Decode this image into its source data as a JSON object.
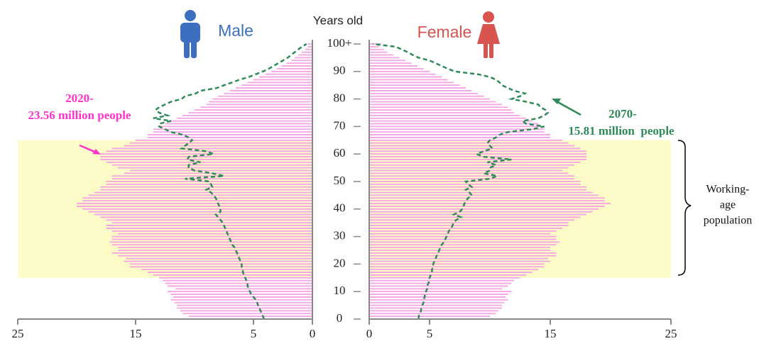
{
  "chart_data": {
    "type": "population-pyramid",
    "y_label": "Years old",
    "ages": [
      0,
      1,
      2,
      3,
      4,
      5,
      6,
      7,
      8,
      9,
      10,
      11,
      12,
      13,
      14,
      15,
      16,
      17,
      18,
      19,
      20,
      21,
      22,
      23,
      24,
      25,
      26,
      27,
      28,
      29,
      30,
      31,
      32,
      33,
      34,
      35,
      36,
      37,
      38,
      39,
      40,
      41,
      42,
      43,
      44,
      45,
      46,
      47,
      48,
      49,
      50,
      51,
      52,
      53,
      54,
      55,
      56,
      57,
      58,
      59,
      60,
      61,
      62,
      63,
      64,
      65,
      66,
      67,
      68,
      69,
      70,
      71,
      72,
      73,
      74,
      75,
      76,
      77,
      78,
      79,
      80,
      81,
      82,
      83,
      84,
      85,
      86,
      87,
      88,
      89,
      90,
      91,
      92,
      93,
      94,
      95,
      96,
      97,
      98,
      99,
      100
    ],
    "ylim": [
      0,
      100
    ],
    "yticks": [
      0,
      10,
      20,
      30,
      40,
      50,
      60,
      70,
      80,
      90,
      {
        "value": 100,
        "label": "100+"
      }
    ],
    "xlim": [
      0,
      25
    ],
    "xticks": [
      0,
      5,
      15,
      25
    ],
    "band": {
      "label": [
        "Working-",
        "age",
        "population"
      ],
      "from": 15,
      "to": 65,
      "color": "#fdfbc8"
    },
    "panels": [
      {
        "name": "Male",
        "side": "left",
        "color": "#3d6fc0",
        "series": [
          {
            "name": "2020",
            "style": "bar",
            "color": "#f5a3e3",
            "values": [
              11,
              10.5,
              11,
              11.2,
              11.5,
              11.5,
              11.7,
              12,
              11.8,
              12,
              12.3,
              11.6,
              12.3,
              12.5,
              12.7,
              13,
              13.5,
              14,
              14.5,
              15.5,
              15.5,
              16,
              15.8,
              16.5,
              17,
              16.5,
              16.5,
              17,
              17.2,
              17,
              17,
              16.5,
              17,
              17.5,
              17.5,
              17,
              17.5,
              18,
              18.5,
              19,
              19.5,
              20,
              20,
              19.5,
              19.5,
              19,
              18.5,
              18,
              18,
              17.5,
              17.5,
              17,
              17,
              16,
              15.5,
              16.5,
              17,
              17.5,
              18,
              18,
              18,
              17.5,
              17,
              16,
              15.5,
              15,
              14,
              14,
              13.5,
              13.5,
              13,
              12.5,
              12,
              11.5,
              11,
              10.5,
              10,
              9.5,
              9,
              8.8,
              8.5,
              8,
              7.5,
              7,
              6.5,
              6,
              5.5,
              5,
              4.5,
              4,
              3.5,
              3,
              2.6,
              2.2,
              1.8,
              1.5,
              1.2,
              0.9,
              0.6,
              0.4,
              0.4
            ]
          },
          {
            "name": "2070",
            "style": "dashed-line",
            "color": "#2e8b57",
            "values": [
              4.1,
              4.2,
              4.3,
              4.4,
              4.5,
              4.6,
              4.7,
              4.8,
              5.0,
              5.2,
              5.3,
              5.4,
              5.5,
              5.5,
              5.6,
              5.7,
              5.8,
              5.9,
              5.9,
              6.0,
              6.0,
              6.1,
              6.2,
              6.3,
              6.4,
              6.5,
              6.6,
              6.8,
              6.9,
              7.0,
              7.1,
              7.2,
              7.3,
              7.4,
              7.5,
              7.6,
              7.8,
              8.0,
              8.2,
              7.8,
              7.8,
              7.9,
              8.0,
              8.1,
              8.2,
              8.4,
              8.6,
              9.0,
              8.5,
              8.6,
              8.7,
              10.8,
              7.5,
              8.5,
              10.0,
              10.5,
              10.5,
              9.5,
              10.6,
              10.5,
              8.4,
              9.0,
              11.1,
              10.8,
              10.5,
              10.2,
              10.5,
              11.0,
              12.0,
              12.5,
              13.0,
              13.0,
              12.0,
              13.5,
              12.3,
              13.0,
              13.3,
              13.0,
              12.5,
              12.0,
              11.1,
              10.8,
              9.9,
              9.5,
              8.1,
              7.5,
              6.8,
              6.2,
              5.4,
              4.8,
              4.2,
              3.7,
              3.3,
              2.9,
              2.5,
              2.1,
              1.8,
              1.5,
              1.2,
              0.9,
              0.5
            ]
          }
        ]
      },
      {
        "name": "Female",
        "side": "right",
        "color": "#d9534f",
        "series": [
          {
            "name": "2020",
            "style": "bar",
            "color": "#f5a3e3",
            "values": [
              10.5,
              10,
              10.5,
              10.7,
              11,
              11,
              11.2,
              11.5,
              11.3,
              11.5,
              11.8,
              11,
              11.5,
              11.8,
              12,
              12.5,
              13,
              13.5,
              14,
              14.5,
              14.5,
              15,
              14.8,
              15.5,
              15.5,
              15,
              15,
              15.5,
              15.8,
              15.5,
              15.5,
              15,
              15.5,
              16,
              16.5,
              16.5,
              17,
              17.5,
              18,
              18.5,
              19,
              19.5,
              20,
              19.5,
              19.5,
              19,
              18.5,
              18,
              18,
              17.5,
              17.5,
              17,
              17,
              16.5,
              16,
              16.5,
              17,
              17.5,
              18,
              18,
              18,
              18,
              17.5,
              17,
              16.5,
              16,
              15,
              15,
              14.5,
              14.5,
              14.5,
              14,
              13.5,
              13,
              12.5,
              12,
              11.8,
              11.5,
              11,
              10.5,
              10,
              9.5,
              9,
              8.5,
              8,
              7.5,
              7,
              6.5,
              6,
              5.5,
              5,
              4.5,
              4,
              3.5,
              3,
              2.5,
              2,
              1.5,
              1.2,
              0.8,
              1.0
            ]
          },
          {
            "name": "2070",
            "style": "dashed-line",
            "color": "#2e8b57",
            "values": [
              4.1,
              4.1,
              4.2,
              4.3,
              4.3,
              4.4,
              4.5,
              4.5,
              4.6,
              4.6,
              4.7,
              4.8,
              4.8,
              4.9,
              5.0,
              5.0,
              5.1,
              5.2,
              5.2,
              5.3,
              5.3,
              5.4,
              5.5,
              5.6,
              5.7,
              5.8,
              5.9,
              6.0,
              6.2,
              6.3,
              6.4,
              6.5,
              6.6,
              6.8,
              6.9,
              7.0,
              7.2,
              7.6,
              7.0,
              7.5,
              7.7,
              7.8,
              7.9,
              8.0,
              8.2,
              8.5,
              8.3,
              8.0,
              8.5,
              8.2,
              8.0,
              10.0,
              10.6,
              9.5,
              10.0,
              10.0,
              10.5,
              9.8,
              11.8,
              9.5,
              8.9,
              9.5,
              10.2,
              10.0,
              9.8,
              10.0,
              10.5,
              10.8,
              11.5,
              13.5,
              14.5,
              13.0,
              12.7,
              14.0,
              14.5,
              14.8,
              14.6,
              14.2,
              14.0,
              13.0,
              11.8,
              12.5,
              12.9,
              12.0,
              11.5,
              11.0,
              10.8,
              10.5,
              10.0,
              9.0,
              7.1,
              6.5,
              6.0,
              5.5,
              5.0,
              4.1,
              3.6,
              3.2,
              2.7,
              2.2,
              0.3
            ]
          }
        ]
      }
    ],
    "annotations": [
      {
        "lines": [
          "2020-",
          "23.56 million people"
        ],
        "color": "#ff33cc"
      },
      {
        "lines": [
          "2070-",
          "15.81 million  people"
        ],
        "color": "#2e8b57"
      }
    ]
  }
}
